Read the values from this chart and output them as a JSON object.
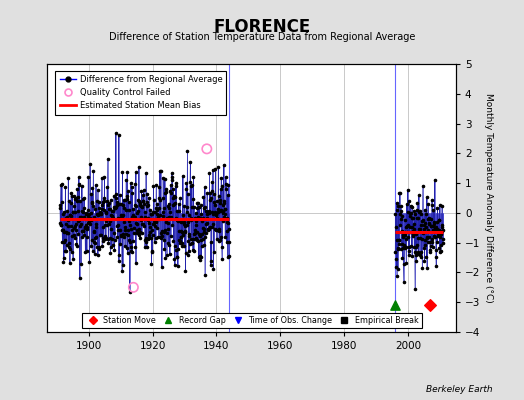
{
  "title": "FLORENCE",
  "subtitle": "Difference of Station Temperature Data from Regional Average",
  "ylabel_right": "Monthly Temperature Anomaly Difference (°C)",
  "xlim": [
    1887,
    2015
  ],
  "ylim": [
    -4,
    5
  ],
  "yticks": [
    -4,
    -3,
    -2,
    -1,
    0,
    1,
    2,
    3,
    4,
    5
  ],
  "xticks": [
    1900,
    1920,
    1940,
    1960,
    1980,
    2000
  ],
  "background_color": "#e0e0e0",
  "plot_bg_color": "#ffffff",
  "grid_color": "#c0c0c0",
  "segment1_start": 1891,
  "segment1_end": 1944,
  "segment1_bias": -0.22,
  "segment2_start": 1996,
  "segment2_end": 2011,
  "segment2_bias": -0.65,
  "station_move_x": 2007,
  "station_move_y": -3.1,
  "record_gap_x": 1996,
  "record_gap_y": -3.1,
  "qc_failed_x1": 1914,
  "qc_failed_y1": -2.5,
  "qc_failed_x2": 1937,
  "qc_failed_y2": 2.15,
  "seed1": 42,
  "seed2": 123
}
